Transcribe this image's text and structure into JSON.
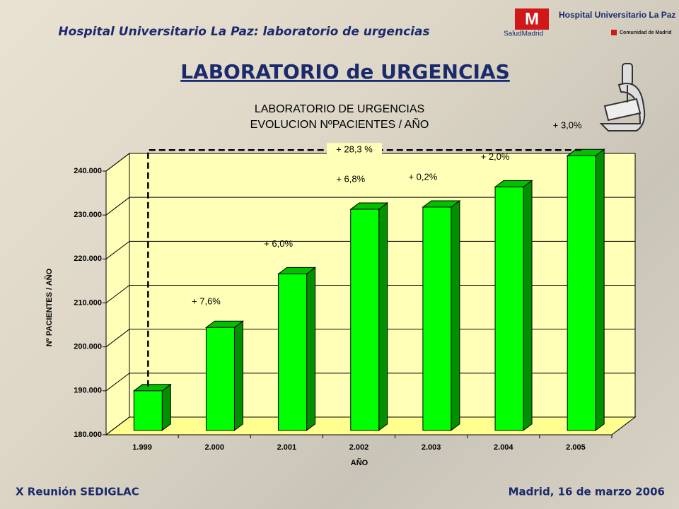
{
  "header": {
    "title": "Hospital Universitario La Paz: laboratorio de urgencias",
    "heading": "LABORATORIO de URGENCIAS",
    "logo_hospital": "Hospital Universitario La Paz",
    "logo_salud": "SaludMadrid",
    "logo_comunidad": "Comunidad de Madrid"
  },
  "footer": {
    "left": "X Reunión SEDIGLAC",
    "right": "Madrid, 16 de marzo 2006"
  },
  "chart_data": {
    "type": "bar3d",
    "title": "LABORATORIO DE URGENCIAS",
    "subtitle": "EVOLUCION NºPACIENTES / AÑO",
    "x_label": "AÑO",
    "y_label": "Nº PACIENTES / AÑO",
    "categories": [
      "1.999",
      "2.000",
      "2.001",
      "2.002",
      "2.003",
      "2.004",
      "2.005"
    ],
    "values": [
      189000,
      203400,
      215600,
      230300,
      230800,
      235400,
      242500
    ],
    "color": "#00ff00",
    "ylim": [
      180000,
      240000
    ],
    "yticks": [
      {
        "value": 180000,
        "label": "180.000"
      },
      {
        "value": 190000,
        "label": "190.000"
      },
      {
        "value": 200000,
        "label": "200.000"
      },
      {
        "value": 210000,
        "label": "210.000"
      },
      {
        "value": 220000,
        "label": "220.000"
      },
      {
        "value": 230000,
        "label": "230.000"
      },
      {
        "value": 240000,
        "label": "240.000"
      }
    ],
    "grid": true,
    "annotations": [
      "+ 7,6%",
      "+ 6,0%",
      "+ 6,8%",
      "+ 0,2%",
      "+ 2,0%",
      "+ 3,0%"
    ],
    "total_annotation": "+ 28,3 %"
  }
}
